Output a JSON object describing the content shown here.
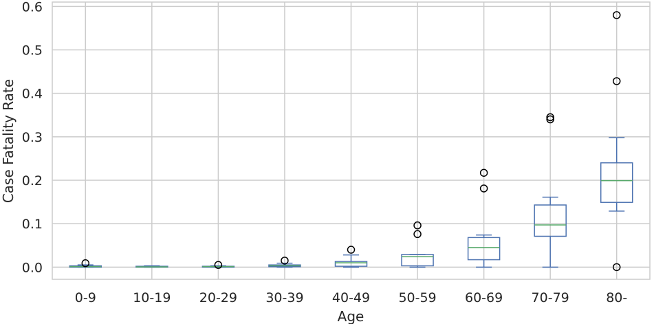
{
  "chart_data": {
    "type": "box",
    "xlabel": "Age",
    "ylabel": "Case Fatality Rate",
    "ylim": [
      -0.028,
      0.61
    ],
    "yticks": [
      0.0,
      0.1,
      0.2,
      0.3,
      0.4,
      0.5,
      0.6
    ],
    "ytick_labels": [
      "0.0",
      "0.1",
      "0.2",
      "0.3",
      "0.4",
      "0.5",
      "0.6"
    ],
    "grid": true,
    "colors": {
      "box": "#4c72b0",
      "median": "#55a868",
      "grid": "#cccccc",
      "outlier": "#000000"
    },
    "categories": [
      "0-9",
      "10-19",
      "20-29",
      "30-39",
      "40-49",
      "50-59",
      "60-69",
      "70-79",
      "80-"
    ],
    "boxes": [
      {
        "label": "0-9",
        "whislo": 0.0,
        "q1": 0.0,
        "med": 0.001,
        "q3": 0.003,
        "whishi": 0.005,
        "fliers": [
          0.009
        ]
      },
      {
        "label": "10-19",
        "whislo": 0.0,
        "q1": 0.0,
        "med": 0.0005,
        "q3": 0.002,
        "whishi": 0.003,
        "fliers": []
      },
      {
        "label": "20-29",
        "whislo": 0.0,
        "q1": 0.0,
        "med": 0.001,
        "q3": 0.002,
        "whishi": 0.003,
        "fliers": [
          0.005
        ]
      },
      {
        "label": "30-39",
        "whislo": 0.0,
        "q1": 0.001,
        "med": 0.003,
        "q3": 0.005,
        "whishi": 0.009,
        "fliers": [
          0.015
        ]
      },
      {
        "label": "40-49",
        "whislo": 0.0,
        "q1": 0.002,
        "med": 0.01,
        "q3": 0.013,
        "whishi": 0.028,
        "fliers": [
          0.04
        ]
      },
      {
        "label": "50-59",
        "whislo": 0.0,
        "q1": 0.003,
        "med": 0.024,
        "q3": 0.029,
        "whishi": 0.029,
        "fliers": [
          0.076,
          0.096
        ]
      },
      {
        "label": "60-69",
        "whislo": 0.0,
        "q1": 0.017,
        "med": 0.045,
        "q3": 0.068,
        "whishi": 0.074,
        "fliers": [
          0.181,
          0.217
        ]
      },
      {
        "label": "70-79",
        "whislo": 0.0,
        "q1": 0.071,
        "med": 0.097,
        "q3": 0.143,
        "whishi": 0.161,
        "fliers": [
          0.34,
          0.345
        ]
      },
      {
        "label": "80-",
        "whislo": 0.129,
        "q1": 0.149,
        "med": 0.199,
        "q3": 0.24,
        "whishi": 0.298,
        "fliers": [
          0.0,
          0.428,
          0.58
        ]
      }
    ]
  }
}
